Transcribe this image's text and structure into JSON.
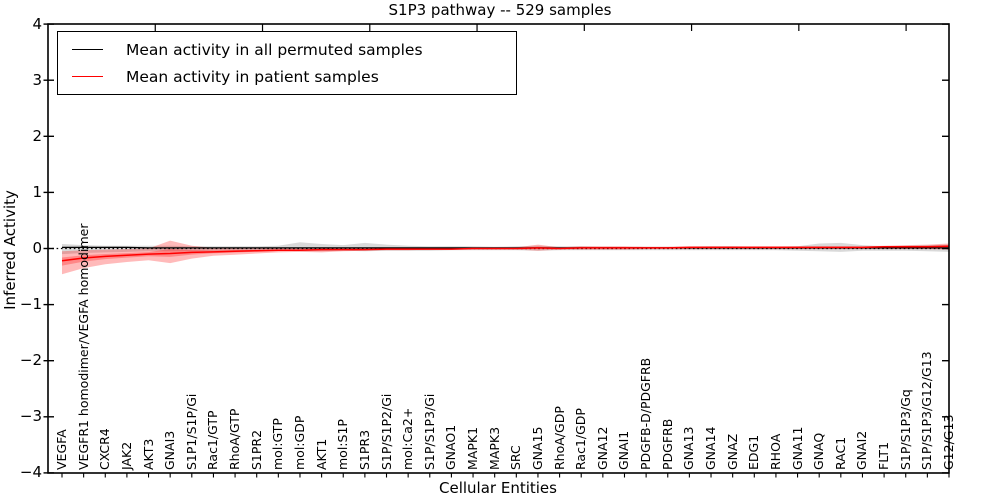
{
  "title": "S1P3 pathway -- 529 samples",
  "axes": {
    "xlabel": "Cellular Entities",
    "ylabel": "Inferred Activity",
    "yticks": [
      4,
      3,
      2,
      1,
      0,
      -1,
      -2,
      -3,
      -4
    ],
    "ylim": [
      -4,
      4
    ]
  },
  "legend": {
    "items": [
      {
        "label": "Mean activity in all permuted samples",
        "color": "#000000"
      },
      {
        "label": "Mean activity in patient samples",
        "color": "#ff0000"
      }
    ]
  },
  "chart_data": {
    "type": "line",
    "title": "S1P3 pathway -- 529 samples",
    "xlabel": "Cellular Entities",
    "ylabel": "Inferred Activity",
    "ylim": [
      -4,
      4
    ],
    "grid": false,
    "legend_position": "upper left",
    "background": "#ffffff",
    "zero_line": {
      "y": 0,
      "style": "dotted",
      "color": "#000000"
    },
    "categories": [
      "VEGFA",
      "VEGFR1 homodimer/VEGFA homodimer",
      "CXCR4",
      "JAK2",
      "AKT3",
      "GNAI3",
      "S1P1/S1P/Gi",
      "Rac1/GTP",
      "RhoA/GTP",
      "S1PR2",
      "mol:GTP",
      "mol:GDP",
      "AKT1",
      "mol:S1P",
      "S1PR3",
      "S1P/S1P2/Gi",
      "mol:Ca2+",
      "S1P/S1P3/Gi",
      "GNAO1",
      "MAPK1",
      "MAPK3",
      "SRC",
      "GNA15",
      "RhoA/GDP",
      "Rac1/GDP",
      "GNA12",
      "GNAI1",
      "PDGFB-D/PDGFRB",
      "PDGFRB",
      "GNA13",
      "GNA14",
      "GNAZ",
      "EDG1",
      "RHOA",
      "GNA11",
      "GNAQ",
      "RAC1",
      "GNAI2",
      "FLT1",
      "S1P/S1P3/Gq",
      "S1P/S1P3/G12/G13",
      "G12/G13"
    ],
    "series": [
      {
        "name": "Mean activity in all permuted samples",
        "color": "#000000",
        "line_width": 1.3,
        "band_color": "rgba(0,0,0,0.15)",
        "values": [
          0.02,
          0.02,
          0.02,
          0.02,
          0.01,
          0.01,
          0.01,
          0.01,
          0.01,
          0.01,
          0.01,
          0.01,
          0.01,
          0.01,
          0.01,
          0.01,
          0.01,
          0.01,
          0.01,
          0.01,
          0.01,
          0.01,
          0.01,
          0.01,
          0.01,
          0.01,
          0.01,
          0.01,
          0.01,
          0.01,
          0.01,
          0.01,
          0.01,
          0.01,
          0.01,
          0.01,
          0.01,
          0.01,
          0.01,
          0.01,
          0.01,
          0.01
        ],
        "band_upper": [
          0.08,
          0.06,
          0.05,
          0.05,
          0.05,
          0.05,
          0.04,
          0.04,
          0.04,
          0.04,
          0.05,
          0.11,
          0.08,
          0.06,
          0.1,
          0.07,
          0.05,
          0.04,
          0.04,
          0.04,
          0.03,
          0.04,
          0.05,
          0.04,
          0.04,
          0.03,
          0.03,
          0.03,
          0.03,
          0.03,
          0.04,
          0.04,
          0.03,
          0.03,
          0.04,
          0.09,
          0.1,
          0.06,
          0.04,
          0.05,
          0.06,
          0.07
        ],
        "band_lower": [
          -0.1,
          -0.08,
          -0.07,
          -0.06,
          -0.05,
          -0.05,
          -0.05,
          -0.04,
          -0.04,
          -0.04,
          -0.04,
          -0.05,
          -0.05,
          -0.04,
          -0.05,
          -0.04,
          -0.04,
          -0.04,
          -0.03,
          -0.03,
          -0.03,
          -0.03,
          -0.04,
          -0.03,
          -0.03,
          -0.03,
          -0.03,
          -0.03,
          -0.03,
          -0.03,
          -0.03,
          -0.03,
          -0.03,
          -0.03,
          -0.04,
          -0.05,
          -0.06,
          -0.04,
          -0.04,
          -0.04,
          -0.05,
          -0.06
        ]
      },
      {
        "name": "Mean activity in patient samples",
        "color": "#ff0000",
        "line_width": 1.5,
        "band_color": "rgba(255,0,0,0.27)",
        "inner_band_scale": 0.35,
        "values": [
          -0.22,
          -0.17,
          -0.14,
          -0.12,
          -0.1,
          -0.09,
          -0.07,
          -0.06,
          -0.05,
          -0.04,
          -0.03,
          -0.03,
          -0.02,
          -0.02,
          -0.02,
          -0.01,
          -0.01,
          -0.01,
          -0.01,
          0.0,
          0.0,
          0.0,
          0.01,
          0.0,
          0.01,
          0.01,
          0.01,
          0.01,
          0.01,
          0.02,
          0.02,
          0.02,
          0.02,
          0.02,
          0.02,
          0.02,
          0.02,
          0.02,
          0.03,
          0.03,
          0.03,
          0.04
        ],
        "band_upper": [
          -0.05,
          -0.03,
          -0.02,
          -0.01,
          0.0,
          0.14,
          0.05,
          0.01,
          0.01,
          0.0,
          0.0,
          0.0,
          0.02,
          0.01,
          0.0,
          0.01,
          0.0,
          0.0,
          0.0,
          0.01,
          0.01,
          0.02,
          0.07,
          0.02,
          0.04,
          0.04,
          0.04,
          0.03,
          0.03,
          0.04,
          0.04,
          0.04,
          0.04,
          0.04,
          0.04,
          0.04,
          0.04,
          0.04,
          0.05,
          0.06,
          0.07,
          0.09
        ],
        "band_lower": [
          -0.46,
          -0.35,
          -0.28,
          -0.24,
          -0.21,
          -0.26,
          -0.18,
          -0.13,
          -0.11,
          -0.09,
          -0.07,
          -0.06,
          -0.07,
          -0.05,
          -0.04,
          -0.03,
          -0.03,
          -0.02,
          -0.02,
          -0.02,
          -0.02,
          -0.02,
          -0.04,
          -0.02,
          -0.02,
          -0.02,
          -0.02,
          -0.01,
          -0.01,
          -0.01,
          -0.01,
          -0.01,
          -0.01,
          -0.01,
          -0.01,
          -0.01,
          -0.01,
          -0.01,
          -0.01,
          -0.01,
          -0.01,
          -0.02
        ]
      }
    ]
  }
}
